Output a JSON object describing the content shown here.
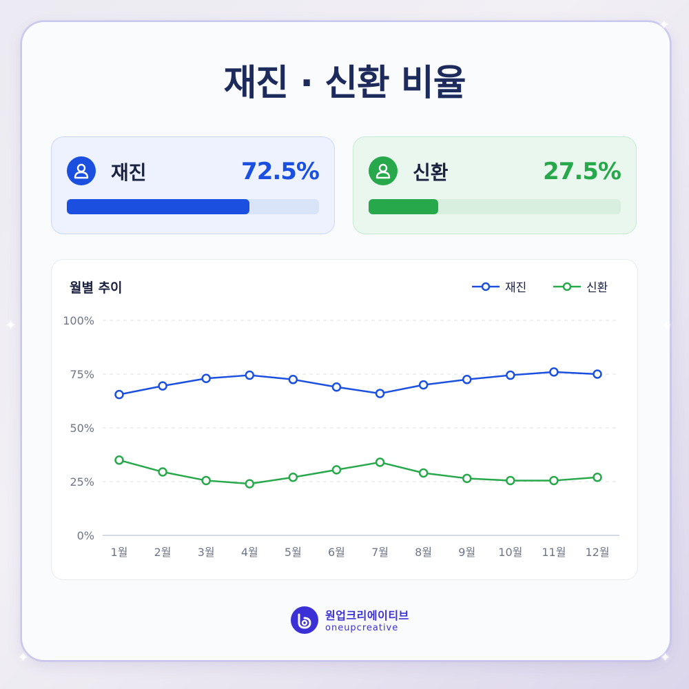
{
  "title": "재진 · 신환 비율",
  "stats": [
    {
      "label": "재진",
      "value": "72.5%",
      "ratio": 0.725,
      "color": "#1a4fe0"
    },
    {
      "label": "신환",
      "value": "27.5%",
      "ratio": 0.275,
      "color": "#27a84a"
    }
  ],
  "chart_panel": {
    "title": "월별 추이"
  },
  "chart_data": {
    "type": "line",
    "title": "월별 추이",
    "categories": [
      "1월",
      "2월",
      "3월",
      "4월",
      "5월",
      "6월",
      "7월",
      "8월",
      "9월",
      "10월",
      "11월",
      "12월"
    ],
    "y_ticks": [
      "0%",
      "25%",
      "50%",
      "75%",
      "100%"
    ],
    "ylim": [
      0,
      100
    ],
    "grid": true,
    "legend": "top-right",
    "series": [
      {
        "name": "재진",
        "color": "#1a4fe0",
        "values": [
          65.5,
          69.5,
          73,
          74.5,
          72.5,
          69,
          66,
          70,
          72.5,
          74.5,
          76,
          75
        ]
      },
      {
        "name": "신환",
        "color": "#27a84a",
        "values": [
          35,
          29.5,
          25.5,
          24,
          27,
          30.5,
          34,
          29,
          26.5,
          25.5,
          25.5,
          27
        ]
      }
    ]
  },
  "brand": {
    "korean": "원업크리에이티브",
    "english": "oneupcreative",
    "color": "#3b2fd6"
  }
}
